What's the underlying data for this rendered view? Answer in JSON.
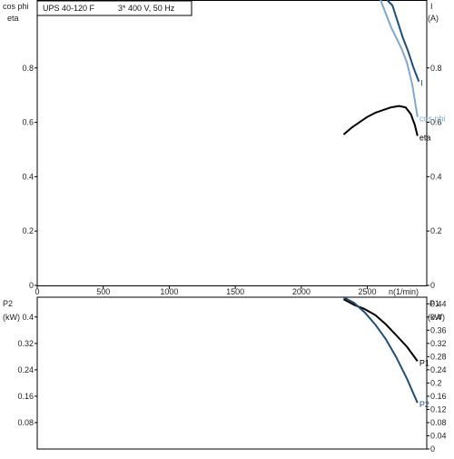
{
  "header": {
    "model": "UPS 40-120 F",
    "spec": "3* 400 V, 50 Hz"
  },
  "chart_data": [
    {
      "type": "line",
      "panel": "upper",
      "xlabel": "n(1/min)",
      "xlim": [
        0,
        2950
      ],
      "x_ticks": [
        0,
        500,
        1000,
        1500,
        2000,
        2500
      ],
      "left_axis": {
        "label_top": "cos phi",
        "label_bottom": "eta",
        "lim": [
          0,
          1.05
        ],
        "ticks": [
          0,
          0.2,
          0.4,
          0.6,
          0.8
        ]
      },
      "right_axis": {
        "label_top": "I",
        "label_bottom": "(A)",
        "lim": [
          0,
          1.05
        ],
        "ticks": [
          0,
          0.2,
          0.4,
          0.6,
          0.8
        ]
      },
      "grid": false,
      "series": [
        {
          "name": "I",
          "axis": "right",
          "color": "#1f4e79",
          "x": [
            2650,
            2690,
            2730,
            2770,
            2810,
            2850,
            2890
          ],
          "y": [
            1.08,
            1.03,
            0.97,
            0.91,
            0.86,
            0.8,
            0.75
          ]
        },
        {
          "name": "cos phi",
          "axis": "left",
          "color": "#7fa7cf",
          "x": [
            2600,
            2640,
            2680,
            2720,
            2760,
            2800,
            2840,
            2880
          ],
          "y": [
            1.08,
            1.0,
            0.95,
            0.91,
            0.87,
            0.82,
            0.74,
            0.62
          ]
        },
        {
          "name": "eta",
          "axis": "left",
          "color": "#000000",
          "x": [
            2320,
            2380,
            2440,
            2500,
            2560,
            2620,
            2680,
            2740,
            2790,
            2830,
            2860,
            2880
          ],
          "y": [
            0.555,
            0.58,
            0.6,
            0.62,
            0.635,
            0.645,
            0.655,
            0.66,
            0.655,
            0.63,
            0.59,
            0.55
          ]
        }
      ]
    },
    {
      "type": "line",
      "panel": "lower",
      "left_axis": {
        "label_top": "P2",
        "label_bottom": "(kW)",
        "lim": [
          0,
          0.46
        ],
        "ticks": [
          0.08,
          0.16,
          0.24,
          0.32,
          0.4
        ]
      },
      "right_axis": {
        "label_top": "P1",
        "label_bottom": "(kW)",
        "lim": [
          0,
          0.46
        ],
        "ticks": [
          0,
          0.04,
          0.08,
          0.12,
          0.16,
          0.2,
          0.24,
          0.28,
          0.32,
          0.36,
          0.4,
          0.44
        ]
      },
      "grid": false,
      "series": [
        {
          "name": "P1",
          "axis": "right",
          "color": "#000000",
          "x": [
            2320,
            2400,
            2480,
            2560,
            2640,
            2720,
            2800,
            2880
          ],
          "y": [
            0.454,
            0.437,
            0.424,
            0.406,
            0.378,
            0.344,
            0.31,
            0.266
          ]
        },
        {
          "name": "P2",
          "axis": "left",
          "color": "#1f4e79",
          "x": [
            2320,
            2400,
            2480,
            2560,
            2640,
            2720,
            2800,
            2880
          ],
          "y": [
            0.46,
            0.443,
            0.414,
            0.377,
            0.333,
            0.277,
            0.213,
            0.14
          ]
        }
      ]
    }
  ]
}
